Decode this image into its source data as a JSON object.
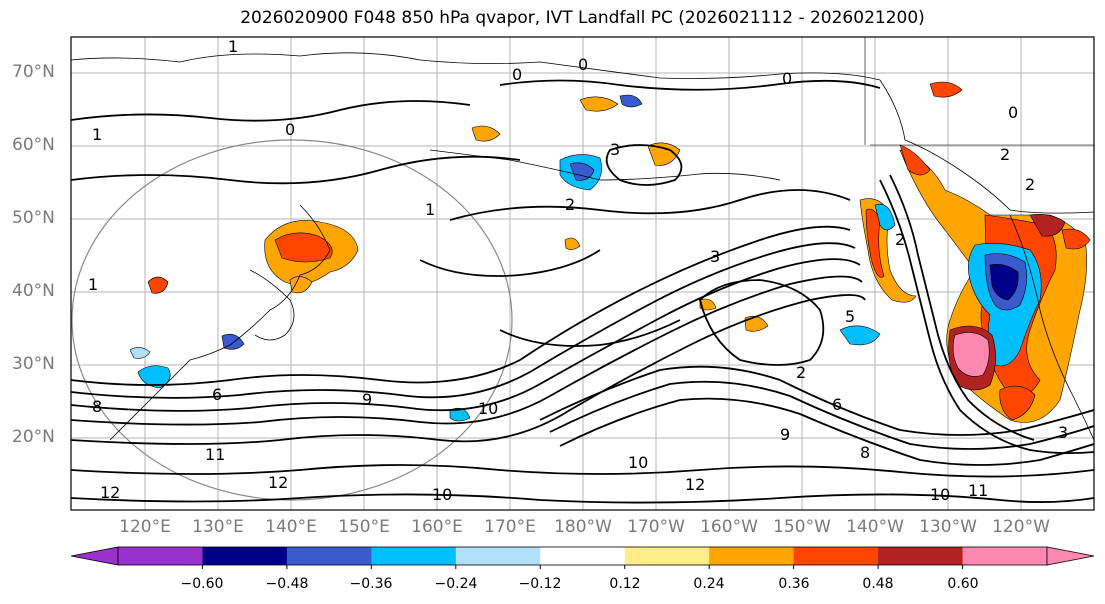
{
  "title": "2026020900 F048 850 hPa qvapor, IVT Landfall PC (2026021112 - 2026021200)",
  "map": {
    "lat_labels": [
      "70°N",
      "60°N",
      "50°N",
      "40°N",
      "30°N",
      "20°N"
    ],
    "lon_labels": [
      "120°E",
      "130°E",
      "140°E",
      "150°E",
      "160°E",
      "170°E",
      "180°W",
      "170°W",
      "160°W",
      "150°W",
      "140°W",
      "130°W",
      "120°W"
    ],
    "contour_labels": [
      "0",
      "1",
      "2",
      "3",
      "5",
      "6",
      "8",
      "9",
      "10",
      "11",
      "12"
    ]
  },
  "colorbar": {
    "colors": [
      "#9932cc",
      "#00008b",
      "#3a5bcd",
      "#00bfff",
      "#b0e0fa",
      "#ffffff",
      "#ffeb8a",
      "#ffa500",
      "#ff4500",
      "#b22222",
      "#ff88b0"
    ],
    "tick_labels": [
      "−0.60",
      "−0.48",
      "−0.36",
      "−0.24",
      "−0.12",
      "0.12",
      "0.24",
      "0.36",
      "0.48",
      "0.60"
    ]
  }
}
